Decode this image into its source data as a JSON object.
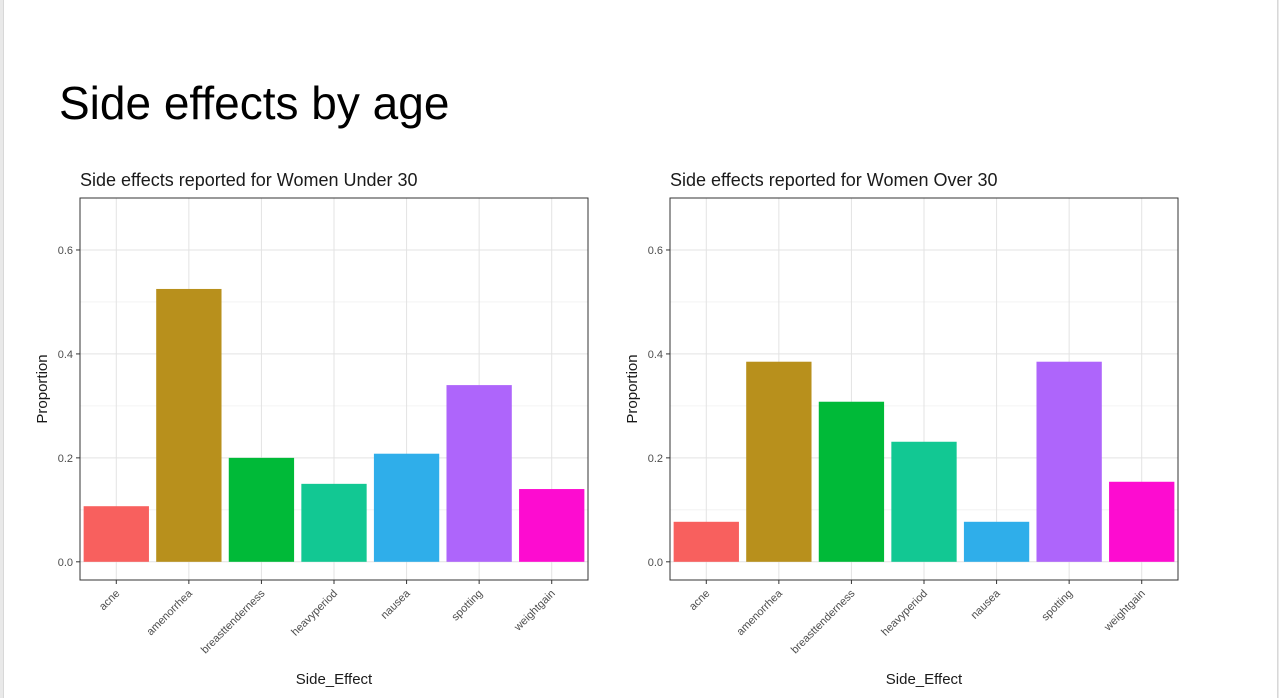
{
  "slide": {
    "title": "Side effects by age"
  },
  "chart_data": [
    {
      "type": "bar",
      "title": "Side effects reported for Women Under 30",
      "xlabel": "Side_Effect",
      "ylabel": "Proportion",
      "categories": [
        "acne",
        "amenorrhea",
        "breasttenderness",
        "heavyperiod",
        "nausea",
        "spotting",
        "weightgain"
      ],
      "values": [
        0.107,
        0.525,
        0.2,
        0.15,
        0.208,
        0.34,
        0.14
      ],
      "colors": [
        "#F8605E",
        "#B8901C",
        "#00BA38",
        "#12C893",
        "#2FAEEA",
        "#AE65FB",
        "#FD0CD0"
      ],
      "ylim": [
        0,
        0.7
      ],
      "yticks": [
        0.0,
        0.2,
        0.4,
        0.6
      ],
      "ytick_labels": [
        "0.0",
        "0.2",
        "0.4",
        "0.6"
      ],
      "grid": true,
      "legend": "none"
    },
    {
      "type": "bar",
      "title": "Side effects reported for Women Over 30",
      "xlabel": "Side_Effect",
      "ylabel": "Proportion",
      "categories": [
        "acne",
        "amenorrhea",
        "breasttenderness",
        "heavyperiod",
        "nausea",
        "spotting",
        "weightgain"
      ],
      "values": [
        0.077,
        0.385,
        0.308,
        0.231,
        0.077,
        0.385,
        0.154
      ],
      "colors": [
        "#F8605E",
        "#B8901C",
        "#00BA38",
        "#12C893",
        "#2FAEEA",
        "#AE65FB",
        "#FD0CD0"
      ],
      "ylim": [
        0,
        0.7
      ],
      "yticks": [
        0.0,
        0.2,
        0.4,
        0.6
      ],
      "ytick_labels": [
        "0.0",
        "0.2",
        "0.4",
        "0.6"
      ],
      "grid": true,
      "legend": "none"
    }
  ]
}
